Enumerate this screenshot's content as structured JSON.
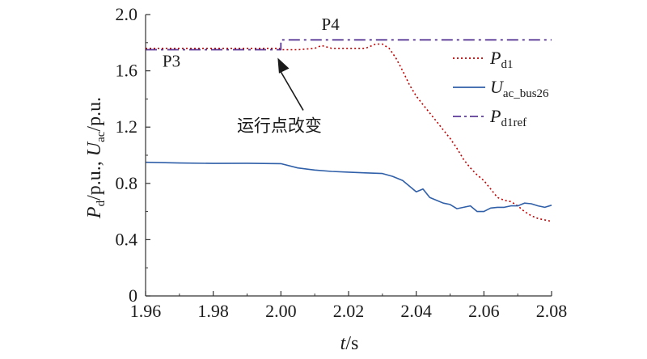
{
  "chart_data": {
    "type": "line",
    "xlim": [
      1.96,
      2.08
    ],
    "ylim": [
      0,
      2.0
    ],
    "xticks": [
      "1.96",
      "1.98",
      "2.00",
      "2.02",
      "2.04",
      "2.06",
      "2.08"
    ],
    "yticks": [
      "0",
      "0.4",
      "0.8",
      "1.2",
      "1.6",
      "2.0"
    ],
    "xlabel": {
      "main": "t",
      "unit": "/s"
    },
    "ylabel": {
      "p": "P",
      "p_sub": "d",
      "mid": "/p.u., ",
      "u": "U",
      "u_sub": "ac",
      "end": "/p.u."
    },
    "legend_position": "top-right",
    "series": [
      {
        "name": "Pd1",
        "legend_main": "P",
        "legend_sub": "d1",
        "color": "#c00000",
        "style": "dotted",
        "x": [
          1.96,
          1.97,
          1.98,
          1.99,
          1.9995,
          2.0,
          2.005,
          2.01,
          2.012,
          2.015,
          2.02,
          2.025,
          2.028,
          2.03,
          2.032,
          2.034,
          2.036,
          2.038,
          2.04,
          2.042,
          2.044,
          2.046,
          2.048,
          2.05,
          2.052,
          2.054,
          2.056,
          2.058,
          2.06,
          2.062,
          2.064,
          2.066,
          2.068,
          2.07,
          2.072,
          2.074,
          2.076,
          2.078,
          2.08
        ],
        "y": [
          1.76,
          1.76,
          1.76,
          1.76,
          1.76,
          1.75,
          1.75,
          1.76,
          1.78,
          1.76,
          1.76,
          1.76,
          1.79,
          1.79,
          1.76,
          1.69,
          1.6,
          1.5,
          1.42,
          1.36,
          1.3,
          1.24,
          1.18,
          1.12,
          1.05,
          0.97,
          0.91,
          0.86,
          0.82,
          0.76,
          0.7,
          0.68,
          0.67,
          0.64,
          0.6,
          0.57,
          0.55,
          0.54,
          0.53
        ]
      },
      {
        "name": "Uac_bus26",
        "legend_main": "U",
        "legend_sub": "ac_bus26",
        "color": "#2f5fa8",
        "style": "solid",
        "x": [
          1.96,
          1.97,
          1.98,
          1.99,
          2.0,
          2.005,
          2.01,
          2.015,
          2.02,
          2.025,
          2.03,
          2.033,
          2.036,
          2.038,
          2.04,
          2.042,
          2.044,
          2.046,
          2.048,
          2.05,
          2.052,
          2.054,
          2.056,
          2.058,
          2.06,
          2.062,
          2.064,
          2.066,
          2.068,
          2.07,
          2.072,
          2.074,
          2.076,
          2.078,
          2.08
        ],
        "y": [
          0.95,
          0.945,
          0.942,
          0.943,
          0.94,
          0.91,
          0.895,
          0.885,
          0.88,
          0.875,
          0.87,
          0.85,
          0.82,
          0.78,
          0.74,
          0.76,
          0.7,
          0.68,
          0.66,
          0.65,
          0.62,
          0.63,
          0.64,
          0.6,
          0.6,
          0.625,
          0.63,
          0.63,
          0.64,
          0.64,
          0.66,
          0.655,
          0.64,
          0.63,
          0.645
        ]
      },
      {
        "name": "Pd1ref",
        "legend_main": "P",
        "legend_sub": "d1ref",
        "color": "#5b3a96",
        "style": "dashdot",
        "x": [
          1.96,
          2.0,
          2.0,
          2.08
        ],
        "y": [
          1.75,
          1.75,
          1.82,
          1.82
        ]
      }
    ],
    "annotations": [
      {
        "text": "P3",
        "x": 1.965,
        "y": 1.63
      },
      {
        "text": "P4",
        "x": 2.012,
        "y": 1.89
      },
      {
        "text": "运行点改变",
        "x": 1.987,
        "y": 1.17,
        "arrow_to": [
          2.0,
          1.75
        ]
      }
    ]
  }
}
